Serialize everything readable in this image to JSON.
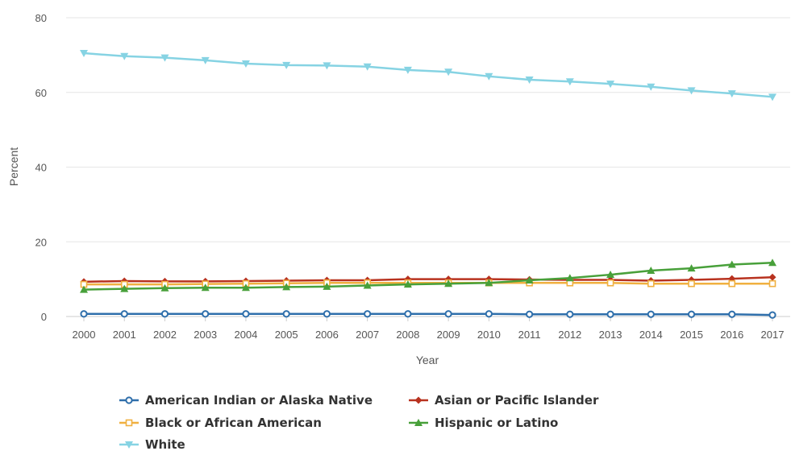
{
  "chart_data": {
    "type": "line",
    "title": "",
    "xlabel": "Year",
    "ylabel": "Percent",
    "ylim": [
      0,
      80
    ],
    "yticks": [
      0,
      20,
      40,
      60,
      80
    ],
    "grid": true,
    "legend_position": "bottom",
    "x": [
      "2000",
      "2001",
      "2002",
      "2003",
      "2004",
      "2005",
      "2006",
      "2007",
      "2008",
      "2009",
      "2010",
      "2011",
      "2012",
      "2013",
      "2014",
      "2015",
      "2016",
      "2017"
    ],
    "series": [
      {
        "name": "American Indian or Alaska Native",
        "color": "#2f6fab",
        "marker": "circle",
        "values": [
          0.7,
          0.7,
          0.7,
          0.7,
          0.7,
          0.7,
          0.7,
          0.7,
          0.7,
          0.7,
          0.7,
          0.6,
          0.6,
          0.6,
          0.6,
          0.6,
          0.6,
          0.4
        ]
      },
      {
        "name": "Asian or Pacific Islander",
        "color": "#b8321f",
        "marker": "diamond",
        "values": [
          9.3,
          9.5,
          9.4,
          9.4,
          9.5,
          9.6,
          9.7,
          9.7,
          10.0,
          10.0,
          10.0,
          9.9,
          9.8,
          9.8,
          9.6,
          9.8,
          10.1,
          10.5
        ]
      },
      {
        "name": "Black or African American",
        "color": "#f0b040",
        "marker": "square",
        "values": [
          8.6,
          8.6,
          8.6,
          8.7,
          8.8,
          8.9,
          9.0,
          9.0,
          9.0,
          9.0,
          9.0,
          9.0,
          9.0,
          9.0,
          8.8,
          8.8,
          8.8,
          8.8
        ]
      },
      {
        "name": "Hispanic or Latino",
        "color": "#48a03a",
        "marker": "triangle",
        "values": [
          7.2,
          7.4,
          7.6,
          7.7,
          7.7,
          7.9,
          8.0,
          8.3,
          8.6,
          8.8,
          9.0,
          9.7,
          10.3,
          11.2,
          12.3,
          12.9,
          13.9,
          14.4
        ]
      },
      {
        "name": "White",
        "color": "#86d3e3",
        "marker": "triangle-down",
        "values": [
          70.5,
          69.7,
          69.3,
          68.6,
          67.7,
          67.3,
          67.2,
          66.9,
          66.0,
          65.5,
          64.3,
          63.4,
          62.9,
          62.3,
          61.5,
          60.5,
          59.7,
          58.8
        ]
      }
    ]
  }
}
